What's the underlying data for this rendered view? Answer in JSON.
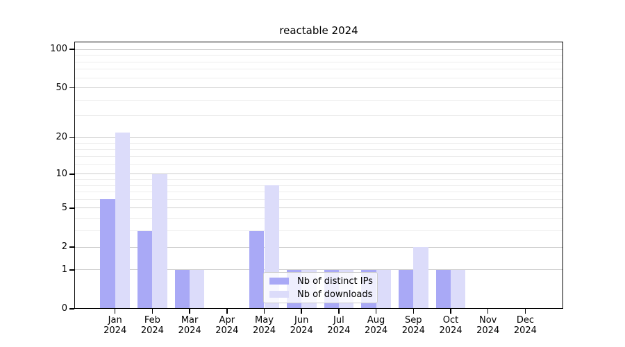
{
  "title": "reactable 2024",
  "legend": {
    "items": [
      {
        "label": "Nb of distinct IPs",
        "color": "#a9a9f6"
      },
      {
        "label": "Nb of downloads",
        "color": "#dcdcfa"
      }
    ]
  },
  "chart_data": {
    "type": "bar",
    "title": "reactable 2024",
    "categories": [
      "Jan 2024",
      "Feb 2024",
      "Mar 2024",
      "Apr 2024",
      "May 2024",
      "Jun 2024",
      "Jul 2024",
      "Aug 2024",
      "Sep 2024",
      "Oct 2024",
      "Nov 2024",
      "Dec 2024"
    ],
    "series": [
      {
        "name": "Nb of distinct IPs",
        "color": "#a9a9f6",
        "values": [
          6,
          3,
          1,
          0,
          3,
          1,
          1,
          1,
          1,
          1,
          0,
          0
        ]
      },
      {
        "name": "Nb of downloads",
        "color": "#dcdcfa",
        "values": [
          22,
          10,
          1,
          0,
          8,
          1,
          1,
          1,
          2,
          1,
          0,
          0
        ]
      }
    ],
    "yscale": "log1p",
    "ylim": [
      0,
      115
    ],
    "ytick_values": [
      0,
      1,
      2,
      5,
      10,
      20,
      50,
      100
    ],
    "ytick_labels": [
      "0",
      "1",
      "2",
      "5",
      "10",
      "20",
      "50",
      "100"
    ],
    "minor_ytick_values": [
      3,
      4,
      6,
      7,
      8,
      9,
      12,
      14,
      16,
      18,
      30,
      40,
      60,
      70,
      80,
      90
    ],
    "grid": true,
    "legend_position": "lower center"
  }
}
